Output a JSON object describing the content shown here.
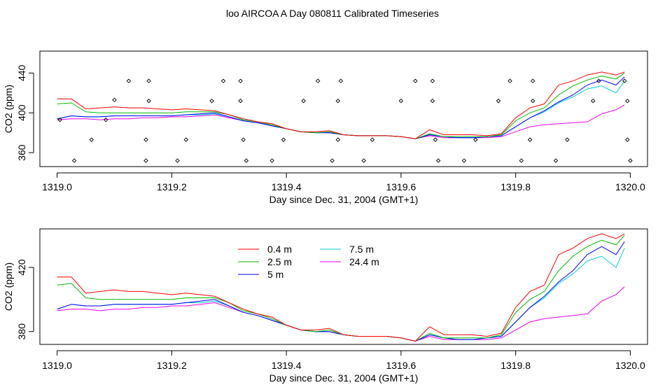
{
  "title": "loo AIRCOA A  Day 080811  Calibrated Timeseries",
  "chart_data": [
    {
      "type": "scatter",
      "title": "loo AIRCOA A  Day 080811  Calibrated Timeseries",
      "xlabel": "Day since Dec. 31, 2004 (GMT+1)",
      "ylabel": "CO2 (ppm)",
      "xlim": [
        1318.97,
        1320.03
      ],
      "ylim": [
        346,
        462
      ],
      "xticks": [
        "1319.0",
        "1319.2",
        "1319.4",
        "1319.6",
        "1319.8",
        "1320.0"
      ],
      "yticks": [
        "360",
        "400",
        "440"
      ],
      "grid": false,
      "lines_shown": true,
      "series": [
        {
          "values": [
            [
              1319.005,
              393
            ],
            [
              1319.03,
              352
            ],
            [
              1319.06,
              373
            ],
            [
              1319.085,
              393
            ],
            [
              1319.1,
              413
            ],
            [
              1319.125,
              432
            ],
            [
              1319.155,
              352
            ],
            [
              1319.155,
              373
            ],
            [
              1319.16,
              412
            ],
            [
              1319.16,
              432
            ],
            [
              1319.21,
              352
            ],
            [
              1319.225,
              373
            ],
            [
              1319.27,
              412
            ],
            [
              1319.29,
              432
            ],
            [
              1319.32,
              412
            ],
            [
              1319.32,
              432
            ],
            [
              1319.325,
              373
            ],
            [
              1319.33,
              352
            ],
            [
              1319.375,
              352
            ],
            [
              1319.395,
              373
            ],
            [
              1319.43,
              412
            ],
            [
              1319.455,
              432
            ],
            [
              1319.48,
              352
            ],
            [
              1319.49,
              373
            ],
            [
              1319.49,
              412
            ],
            [
              1319.495,
              432
            ],
            [
              1319.535,
              352
            ],
            [
              1319.55,
              373
            ],
            [
              1319.6,
              412
            ],
            [
              1319.625,
              432
            ],
            [
              1319.655,
              412
            ],
            [
              1319.655,
              432
            ],
            [
              1319.66,
              373
            ],
            [
              1319.665,
              352
            ],
            [
              1319.71,
              352
            ],
            [
              1319.73,
              373
            ],
            [
              1319.77,
              412
            ],
            [
              1319.79,
              432
            ],
            [
              1319.81,
              352
            ],
            [
              1319.825,
              373
            ],
            [
              1319.83,
              412
            ],
            [
              1319.83,
              432
            ],
            [
              1319.87,
              352
            ],
            [
              1319.89,
              373
            ],
            [
              1319.935,
              412
            ],
            [
              1319.945,
              432
            ],
            [
              1319.99,
              432
            ],
            [
              1319.995,
              412
            ],
            [
              1319.995,
              373
            ],
            [
              1320.0,
              352
            ]
          ]
        }
      ]
    },
    {
      "type": "line",
      "xlabel": "Day since Dec. 31, 2004 (GMT+1)",
      "ylabel": "CO2 (ppm)",
      "xlim": [
        1318.97,
        1320.03
      ],
      "ylim": [
        372,
        444
      ],
      "xticks": [
        "1319.0",
        "1319.2",
        "1319.4",
        "1319.6",
        "1319.8",
        "1320.0"
      ],
      "yticks": [
        "380",
        "420"
      ],
      "grid": false,
      "legend_position": "top-left",
      "x": [
        1319.0,
        1319.025,
        1319.05,
        1319.075,
        1319.1,
        1319.125,
        1319.15,
        1319.175,
        1319.2,
        1319.225,
        1319.25,
        1319.275,
        1319.3,
        1319.325,
        1319.35,
        1319.375,
        1319.4,
        1319.425,
        1319.45,
        1319.475,
        1319.5,
        1319.525,
        1319.55,
        1319.575,
        1319.6,
        1319.625,
        1319.65,
        1319.675,
        1319.7,
        1319.725,
        1319.75,
        1319.775,
        1319.8,
        1319.825,
        1319.85,
        1319.875,
        1319.9,
        1319.925,
        1319.95,
        1319.975,
        1319.99
      ],
      "series": [
        {
          "name": "0.4 m",
          "color": "#ff0000",
          "values": [
            414,
            414,
            404,
            405,
            406,
            405,
            405,
            404,
            403,
            404,
            403,
            402,
            398,
            394,
            391,
            389,
            384,
            381,
            381,
            382,
            378,
            377,
            377,
            377,
            376,
            374,
            383,
            378,
            378,
            378,
            377,
            379,
            395,
            405,
            409,
            428,
            432,
            438,
            441,
            438,
            441
          ]
        },
        {
          "name": "2.5 m",
          "color": "#00bb00",
          "values": [
            409,
            410,
            401,
            400,
            400,
            400,
            400,
            400,
            400,
            401,
            401,
            401,
            398,
            393,
            391,
            388,
            384,
            381,
            380,
            381,
            378,
            377,
            377,
            377,
            376,
            374,
            379,
            376,
            376,
            376,
            376,
            378,
            392,
            400,
            405,
            418,
            427,
            433,
            437,
            434,
            440
          ]
        },
        {
          "name": "5 m",
          "color": "#0000ff",
          "values": [
            394,
            397,
            396,
            396,
            397,
            397,
            397,
            397,
            397,
            398,
            399,
            400,
            396,
            392,
            390,
            387,
            384,
            381,
            380,
            380,
            378,
            377,
            377,
            377,
            376,
            374,
            378,
            376,
            375,
            375,
            376,
            377,
            386,
            395,
            402,
            411,
            418,
            428,
            433,
            428,
            436
          ]
        },
        {
          "name": "7.5 m",
          "color": "#00ced1",
          "values": [
            394,
            397,
            396,
            396,
            397,
            397,
            397,
            397,
            397,
            398,
            398,
            399,
            396,
            392,
            390,
            387,
            384,
            381,
            380,
            380,
            378,
            377,
            377,
            377,
            376,
            374,
            378,
            376,
            375,
            375,
            376,
            377,
            386,
            395,
            401,
            410,
            416,
            424,
            427,
            420,
            432
          ]
        },
        {
          "name": "24.4 m",
          "color": "#ee00ee",
          "values": [
            393,
            394,
            394,
            393,
            394,
            394,
            395,
            395,
            396,
            396,
            397,
            398,
            395,
            392,
            390,
            387,
            384,
            381,
            380,
            380,
            378,
            377,
            377,
            377,
            376,
            374,
            377,
            375,
            375,
            375,
            375,
            376,
            381,
            386,
            388,
            389,
            390,
            391,
            399,
            403,
            408
          ]
        }
      ]
    }
  ]
}
